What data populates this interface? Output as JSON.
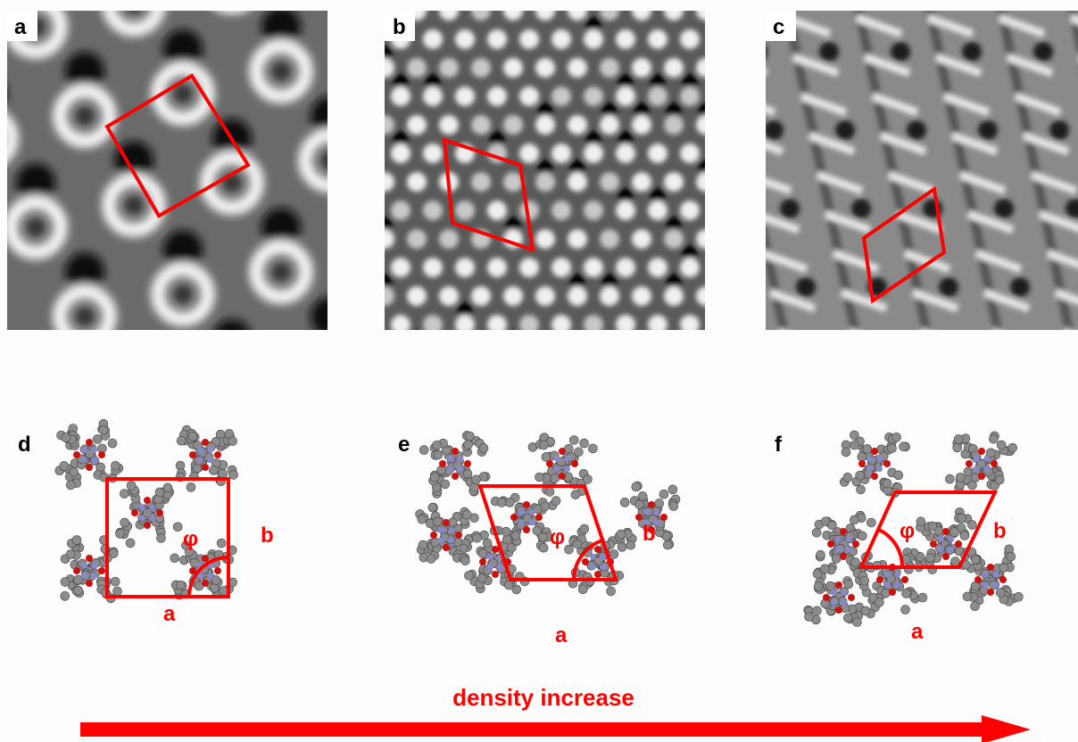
{
  "panels": [
    {
      "label": "a"
    },
    {
      "label": "b"
    },
    {
      "label": "c"
    }
  ],
  "models": [
    {
      "label": "d",
      "phi": "φ",
      "a": "a",
      "b": "b"
    },
    {
      "label": "e",
      "phi": "φ",
      "a": "a",
      "b": "b"
    },
    {
      "label": "f",
      "phi": "φ",
      "a": "a",
      "b": "b"
    }
  ],
  "arrow": {
    "label": "density increase"
  }
}
